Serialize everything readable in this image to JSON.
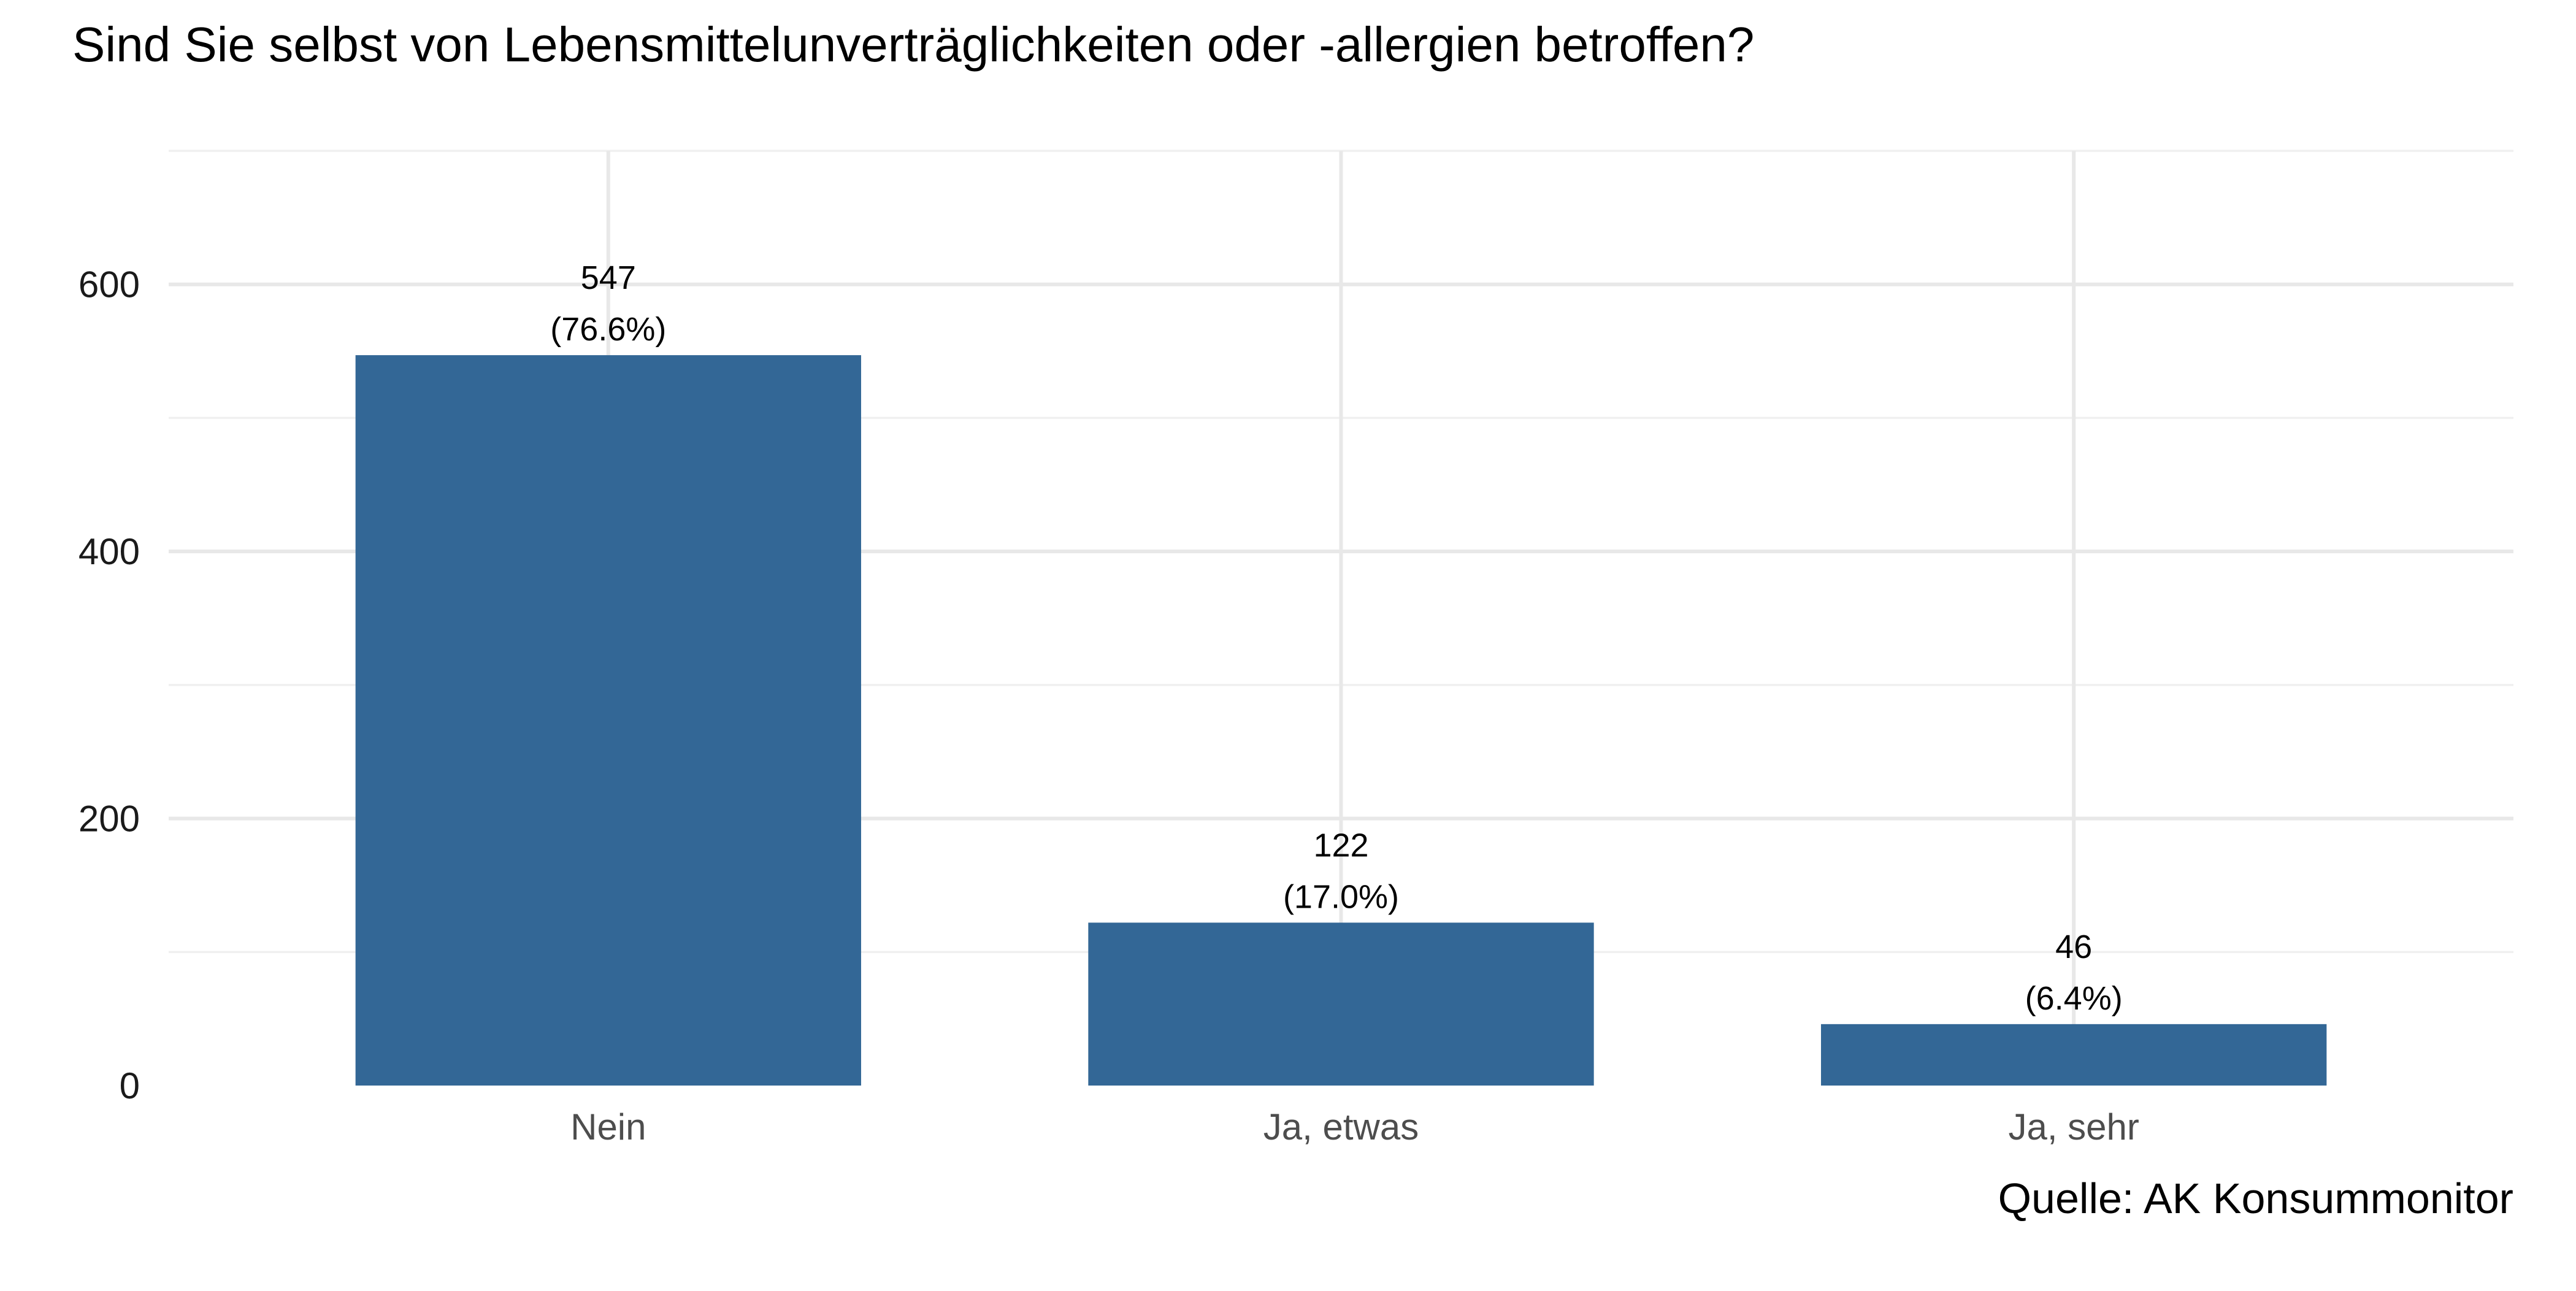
{
  "chart_data": {
    "type": "bar",
    "title": "Sind Sie selbst von Lebensmittelunverträglichkeiten oder -allergien betroffen?",
    "categories": [
      "Nein",
      "Ja, etwas",
      "Ja, sehr"
    ],
    "values": [
      547,
      122,
      46
    ],
    "value_labels": [
      "547",
      "122",
      "46"
    ],
    "percent_labels": [
      "(76.6%)",
      "(17.0%)",
      "(6.4%)"
    ],
    "xlabel": "",
    "ylabel": "",
    "ylim": [
      0,
      700
    ],
    "yticks": [
      0,
      200,
      400,
      600
    ],
    "yticks_minor": [
      100,
      300,
      500,
      700
    ],
    "grid": true,
    "legend": "none",
    "caption": "Quelle: AK Konsummonitor",
    "colors": {
      "bar": "#336796"
    }
  }
}
